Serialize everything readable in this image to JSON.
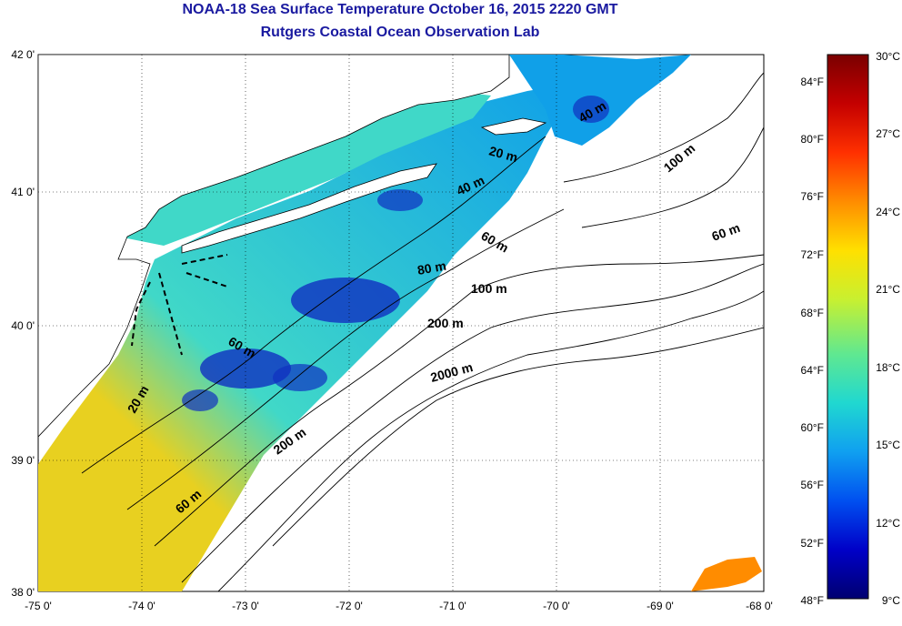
{
  "title": "NOAA-18 Sea Surface Temperature October 16, 2015 2220 GMT",
  "subtitle": "Rutgers Coastal Ocean Observation Lab",
  "lat_labels": [
    "42 0'",
    "41 0'",
    "40 0'",
    "39 0'",
    "38 0'"
  ],
  "lon_labels": [
    "-75 0'",
    "-74 0'",
    "-73 0'",
    "-72 0'",
    "-71 0'",
    "-70 0'",
    "-69 0'",
    "-68 0'"
  ],
  "contour_labels": [
    "40 m",
    "20 m",
    "100 m",
    "40 m",
    "60 m",
    "60 m",
    "80 m",
    "100 m",
    "200 m",
    "60 m",
    "2000 m",
    "20 m",
    "200 m",
    "60 m"
  ],
  "colorbar": {
    "celsius_labels": [
      "30°C",
      "27°C",
      "24°C",
      "21°C",
      "18°C",
      "15°C",
      "12°C",
      "9°C"
    ],
    "fahrenheit_labels": [
      "84°F",
      "80°F",
      "76°F",
      "72°F",
      "68°F",
      "64°F",
      "60°F",
      "56°F",
      "52°F",
      "48°F"
    ],
    "stops": [
      "#7a0000",
      "#c40000",
      "#ff3000",
      "#ff8c00",
      "#ffe000",
      "#c8f030",
      "#60e890",
      "#20d8d0",
      "#10a0f0",
      "#0050f0",
      "#0000c8",
      "#000070"
    ]
  },
  "colors": {
    "title": "#1a1aa0",
    "sst_warm": "#e8d020",
    "sst_mid": "#40d8c8",
    "sst_cool": "#10a0e8",
    "sst_cold": "#1030c0",
    "contour": "#000000"
  }
}
